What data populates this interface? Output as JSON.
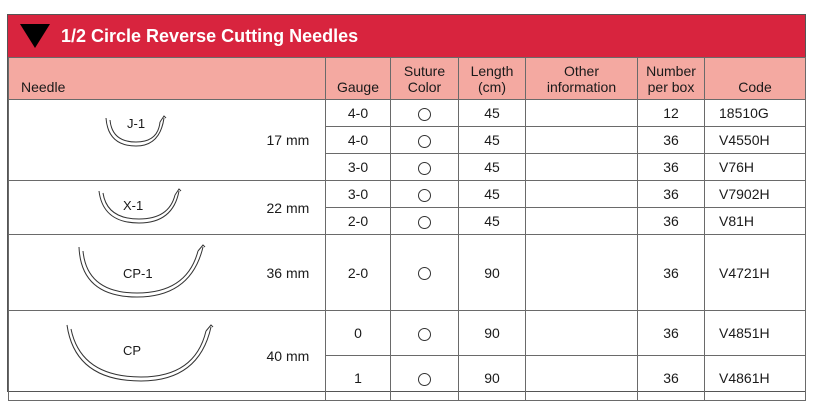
{
  "title": "1/2 Circle Reverse Cutting Needles",
  "headers": {
    "needle": "Needle",
    "gauge": "Gauge",
    "suture_color": [
      "Suture",
      "Color"
    ],
    "length": [
      "Length",
      "(cm)"
    ],
    "other": [
      "Other",
      "information"
    ],
    "number": [
      "Number",
      "per box"
    ],
    "code": "Code"
  },
  "needles": [
    {
      "name": "J-1",
      "size": "17 mm",
      "rows": [
        {
          "gauge": "4-0",
          "length": "45",
          "other": "",
          "number": "12",
          "code": "18510G"
        },
        {
          "gauge": "4-0",
          "length": "45",
          "other": "",
          "number": "36",
          "code": "V4550H"
        },
        {
          "gauge": "3-0",
          "length": "45",
          "other": "",
          "number": "36",
          "code": "V76H"
        }
      ]
    },
    {
      "name": "X-1",
      "size": "22 mm",
      "rows": [
        {
          "gauge": "3-0",
          "length": "45",
          "other": "",
          "number": "36",
          "code": "V7902H"
        },
        {
          "gauge": "2-0",
          "length": "45",
          "other": "",
          "number": "36",
          "code": "V81H"
        }
      ]
    },
    {
      "name": "CP-1",
      "size": "36 mm",
      "rows": [
        {
          "gauge": "2-0",
          "length": "90",
          "other": "",
          "number": "36",
          "code": "V4721H"
        }
      ]
    },
    {
      "name": "CP",
      "size": "40 mm",
      "rows": [
        {
          "gauge": "0",
          "length": "90",
          "other": "",
          "number": "36",
          "code": "V4851H"
        },
        {
          "gauge": "1",
          "length": "90",
          "other": "",
          "number": "36",
          "code": "V4861H"
        }
      ]
    }
  ]
}
